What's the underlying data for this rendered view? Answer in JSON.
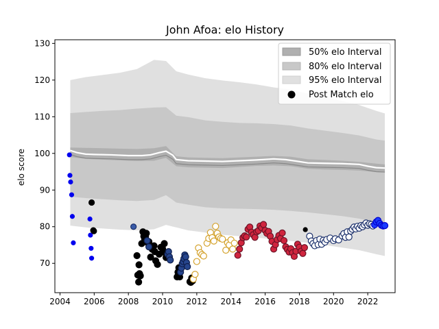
{
  "chart_data": {
    "type": "scatter",
    "title": "John Afoa: elo History",
    "xlabel": "",
    "ylabel": "elo score",
    "xlim": [
      2003.7,
      2023.6
    ],
    "ylim": [
      62,
      131
    ],
    "x_ticks": [
      2004,
      2006,
      2008,
      2010,
      2012,
      2014,
      2016,
      2018,
      2020,
      2022
    ],
    "y_ticks": [
      70,
      80,
      90,
      100,
      110,
      120,
      130
    ],
    "grid": false,
    "legend_placement": "top-right",
    "legend": [
      {
        "label": "50% elo Interval",
        "kind": "band",
        "color": "#b0b0b0"
      },
      {
        "label": "80% elo Interval",
        "kind": "band",
        "color": "#c8c8c8"
      },
      {
        "label": "95% elo Interval",
        "kind": "band",
        "color": "#e0e0e0"
      },
      {
        "label": "Post Match elo",
        "kind": "marker",
        "color": "#000000"
      }
    ],
    "mean_line": {
      "x": [
        2004.6,
        2005.0,
        2005.5,
        2006.0,
        2007.0,
        2008.0,
        2008.8,
        2009.3,
        2009.8,
        2010.2,
        2010.6,
        2010.8,
        2011.5,
        2012.5,
        2013.5,
        2014.5,
        2015.5,
        2016.5,
        2017.2,
        2017.8,
        2018.5,
        2019.5,
        2020.5,
        2021.5,
        2022.0,
        2022.5,
        2023.0
      ],
      "y": [
        100.8,
        100.2,
        99.8,
        99.7,
        99.6,
        99.4,
        99.4,
        99.6,
        100.2,
        100.6,
        99.5,
        98.3,
        98.0,
        97.9,
        97.8,
        98.0,
        98.2,
        98.5,
        98.3,
        97.9,
        97.4,
        97.3,
        97.2,
        97.0,
        96.5,
        96.1,
        96.0
      ]
    },
    "bands": {
      "x": [
        2004.6,
        2005.5,
        2006.5,
        2007.5,
        2008.5,
        2009.5,
        2010.2,
        2010.8,
        2011.5,
        2012.5,
        2013.5,
        2014.5,
        2015.5,
        2016.5,
        2017.5,
        2018.5,
        2019.5,
        2020.5,
        2021.5,
        2022.5,
        2023.0
      ],
      "p50_low": [
        99.0,
        98.5,
        98.3,
        98.1,
        97.9,
        98.0,
        98.8,
        96.5,
        96.2,
        96.1,
        96.0,
        96.3,
        96.6,
        96.7,
        96.5,
        95.8,
        95.6,
        95.5,
        95.3,
        94.9,
        94.8
      ],
      "p50_high": [
        101.6,
        101.5,
        101.4,
        101.3,
        101.2,
        101.4,
        102.0,
        99.2,
        98.9,
        98.8,
        98.7,
        98.9,
        99.1,
        99.3,
        99.1,
        98.4,
        98.2,
        98.0,
        97.7,
        97.2,
        97.0
      ],
      "p80_low": [
        88.2,
        87.8,
        87.5,
        87.2,
        87.0,
        87.3,
        88.6,
        86.6,
        86.0,
        85.3,
        85.0,
        84.9,
        84.8,
        84.6,
        84.3,
        83.9,
        83.4,
        82.9,
        82.2,
        81.2,
        80.8
      ],
      "p80_high": [
        111.0,
        111.3,
        111.6,
        111.8,
        112.2,
        112.5,
        112.6,
        110.3,
        109.9,
        109.0,
        108.6,
        108.3,
        108.2,
        108.0,
        107.6,
        106.8,
        106.2,
        105.6,
        104.9,
        103.8,
        103.5
      ],
      "p95_low": [
        80.3,
        79.8,
        79.5,
        79.2,
        79.0,
        79.3,
        80.5,
        79.8,
        79.0,
        78.4,
        77.8,
        77.4,
        77.0,
        76.6,
        76.1,
        75.6,
        75.0,
        74.3,
        73.6,
        72.5,
        72.0
      ],
      "p95_high": [
        120.0,
        120.8,
        121.4,
        122.0,
        123.0,
        125.5,
        125.2,
        122.4,
        121.5,
        120.5,
        119.9,
        119.4,
        118.8,
        118.0,
        117.4,
        116.3,
        115.3,
        114.3,
        113.2,
        111.6,
        110.9
      ]
    },
    "point_groups": [
      {
        "fill": "#0000ee",
        "edge": "#0000ee",
        "size": 3,
        "x": [
          2004.55,
          2004.58,
          2004.62,
          2004.68,
          2004.72,
          2004.78,
          2005.75,
          2005.78,
          2005.82,
          2005.85
        ],
        "y": [
          99.6,
          94.0,
          92.2,
          88.7,
          82.8,
          75.6,
          82.1,
          77.7,
          74.1,
          71.4
        ]
      },
      {
        "fill": "#000000",
        "edge": "#000000",
        "size": 4,
        "x": [
          2005.85,
          2005.95,
          2005.98
        ],
        "y": [
          86.6,
          79.0,
          78.8
        ]
      },
      {
        "fill": "#3a5ba8",
        "edge": "#1a2f6b",
        "size": 4,
        "x": [
          2008.3
        ],
        "y": [
          80.0
        ]
      },
      {
        "fill": "#000000",
        "edge": "#000000",
        "size": 4.5,
        "x": [
          2008.5,
          2008.55,
          2008.6,
          2008.62,
          2008.65,
          2008.7,
          2008.78,
          2008.85,
          2008.9,
          2008.95,
          2009.0,
          2009.05,
          2009.15,
          2009.2,
          2009.3,
          2009.4,
          2009.5,
          2009.55,
          2009.6,
          2009.7,
          2009.8,
          2009.9,
          2010.0,
          2010.05,
          2010.1,
          2010.2,
          2010.3,
          2010.85,
          2010.9,
          2010.95,
          2011.0,
          2011.6,
          2011.65,
          2011.7,
          2011.75
        ],
        "y": [
          72.1,
          66.8,
          64.9,
          69.6,
          67.2,
          66.6,
          75.4,
          78.6,
          77.4,
          76.7,
          77.3,
          78.2,
          75.5,
          75.9,
          71.7,
          73.8,
          74.8,
          73.2,
          70.7,
          69.7,
          72.5,
          74.4,
          74.0,
          73.1,
          75.4,
          71.6,
          72.0,
          66.3,
          67.6,
          68.8,
          66.3,
          65.0,
          64.8,
          66.0,
          65.2
        ]
      },
      {
        "fill": "#26458c",
        "edge": "#0f1f4d",
        "size": 4.5,
        "x": [
          2009.1,
          2009.2,
          2010.3,
          2010.35,
          2010.4,
          2010.45,
          2011.05,
          2011.1,
          2011.15,
          2011.2,
          2011.25,
          2011.3,
          2011.35,
          2011.4,
          2011.45
        ],
        "y": [
          76.2,
          74.5,
          72.5,
          73.2,
          71.8,
          70.9,
          67.6,
          68.7,
          69.9,
          70.5,
          71.3,
          72.3,
          71.8,
          70.2,
          69.1
        ]
      },
      {
        "fill": "#ffffff",
        "edge": "#d4a22c",
        "size": 4.5,
        "x": [
          2011.8,
          2011.9,
          2012.0,
          2012.1,
          2012.2,
          2012.3,
          2012.4,
          2012.6,
          2012.7,
          2012.8,
          2012.9,
          2013.0,
          2013.1,
          2013.2,
          2013.3,
          2013.4,
          2013.5,
          2013.7,
          2013.8,
          2013.9,
          2014.0,
          2014.1,
          2014.2
        ],
        "y": [
          65.7,
          67.0,
          70.5,
          74.2,
          72.9,
          72.4,
          72.0,
          75.5,
          76.8,
          78.4,
          77.0,
          76.1,
          80.1,
          78.2,
          77.2,
          76.8,
          76.6,
          73.6,
          75.6,
          75.0,
          76.4,
          73.9,
          75.5
        ]
      },
      {
        "fill": "#d0253e",
        "edge": "#6b1326",
        "size": 4.5,
        "x": [
          2014.4,
          2014.5,
          2014.6,
          2014.7,
          2014.8,
          2014.9,
          2015.0,
          2015.1,
          2015.2,
          2015.3,
          2015.4,
          2015.5,
          2015.6,
          2015.7,
          2015.8,
          2015.9,
          2016.0,
          2016.1,
          2016.2,
          2016.3,
          2016.4,
          2016.5,
          2016.6,
          2016.7,
          2016.8,
          2016.9,
          2017.0,
          2017.1,
          2017.2,
          2017.3,
          2017.4,
          2017.5,
          2017.6,
          2017.7,
          2017.8,
          2017.9,
          2018.0,
          2018.1,
          2018.2,
          2018.3
        ],
        "y": [
          72.2,
          73.9,
          75.6,
          77.0,
          77.5,
          77.2,
          79.3,
          79.9,
          78.5,
          77.8,
          77.1,
          78.6,
          78.9,
          80.2,
          79.7,
          80.6,
          79.0,
          78.2,
          78.7,
          77.4,
          76.0,
          73.9,
          75.1,
          76.5,
          77.6,
          76.8,
          78.3,
          76.2,
          74.5,
          73.8,
          73.1,
          74.0,
          72.9,
          71.9,
          73.3,
          75.2,
          74.4,
          73.3,
          72.7,
          74.3
        ]
      },
      {
        "fill": "#000000",
        "edge": "#000000",
        "size": 3,
        "x": [
          2018.35
        ],
        "y": [
          79.2
        ]
      },
      {
        "fill": "#ffffff",
        "edge": "#1a2f6b",
        "size": 4.5,
        "x": [
          2018.6,
          2018.7,
          2018.8,
          2018.9,
          2019.0,
          2019.1,
          2019.2,
          2019.3,
          2019.4,
          2019.5,
          2019.6,
          2019.8,
          2020.0,
          2020.1,
          2020.3,
          2020.5,
          2020.6,
          2020.7,
          2020.8,
          2020.9,
          2021.0,
          2021.1,
          2021.2,
          2021.3,
          2021.4,
          2021.5,
          2021.6,
          2021.7,
          2021.8,
          2021.9,
          2022.0,
          2022.1,
          2022.2,
          2022.3
        ],
        "y": [
          77.4,
          76.1,
          75.4,
          74.8,
          76.2,
          75.1,
          76.6,
          75.2,
          76.3,
          75.8,
          76.5,
          76.9,
          76.2,
          76.7,
          76.4,
          77.5,
          78.1,
          77.1,
          78.6,
          77.2,
          78.8,
          79.3,
          79.9,
          79.4,
          80.1,
          79.6,
          80.3,
          80.0,
          80.5,
          81.0,
          80.4,
          80.8,
          80.6,
          80.2
        ]
      },
      {
        "fill": "#1a3bff",
        "edge": "#0000cc",
        "size": 4.5,
        "x": [
          2022.4,
          2022.5,
          2022.6,
          2022.7,
          2022.8,
          2022.9,
          2023.0
        ],
        "y": [
          80.5,
          81.3,
          81.7,
          80.9,
          80.4,
          80.2,
          80.3
        ]
      }
    ]
  }
}
